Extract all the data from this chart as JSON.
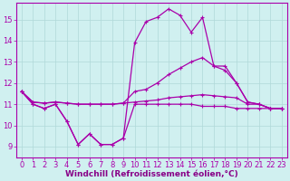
{
  "background_color": "#d0f0f0",
  "grid_color": "#b0d8d8",
  "line_color": "#aa00aa",
  "marker": "+",
  "markersize": 3,
  "linewidth": 0.9,
  "xlabel": "Windchill (Refroidissement éolien,°C)",
  "xlabel_color": "#880088",
  "xlabel_fontsize": 6.5,
  "tick_fontsize": 6,
  "ylim": [
    8.5,
    15.8
  ],
  "yticks": [
    9,
    10,
    11,
    12,
    13,
    14,
    15
  ],
  "xlim": [
    -0.5,
    23.5
  ],
  "xticks": [
    0,
    1,
    2,
    3,
    4,
    5,
    6,
    7,
    8,
    9,
    10,
    11,
    12,
    13,
    14,
    15,
    16,
    17,
    18,
    19,
    20,
    21,
    22,
    23
  ],
  "series": [
    [
      11.6,
      11.0,
      10.8,
      11.0,
      10.2,
      9.1,
      9.6,
      9.1,
      9.1,
      9.4,
      13.9,
      14.9,
      15.1,
      15.5,
      15.2,
      14.4,
      15.1,
      12.8,
      12.8,
      12.0,
      11.1,
      11.0,
      10.8,
      10.8
    ],
    [
      11.6,
      11.1,
      11.05,
      11.1,
      11.05,
      11.0,
      11.0,
      11.0,
      11.0,
      11.05,
      11.6,
      11.7,
      12.0,
      12.4,
      12.7,
      13.0,
      13.2,
      12.8,
      12.6,
      12.0,
      11.1,
      11.0,
      10.8,
      10.8
    ],
    [
      11.6,
      11.1,
      11.05,
      11.1,
      11.05,
      11.0,
      11.0,
      11.0,
      11.0,
      11.05,
      11.1,
      11.15,
      11.2,
      11.3,
      11.35,
      11.4,
      11.45,
      11.4,
      11.35,
      11.3,
      11.0,
      11.0,
      10.8,
      10.8
    ],
    [
      11.6,
      11.0,
      10.8,
      11.0,
      10.2,
      9.1,
      9.6,
      9.1,
      9.1,
      9.4,
      11.0,
      11.0,
      11.0,
      11.0,
      11.0,
      11.0,
      10.9,
      10.9,
      10.9,
      10.8,
      10.8,
      10.8,
      10.8,
      10.8
    ]
  ]
}
